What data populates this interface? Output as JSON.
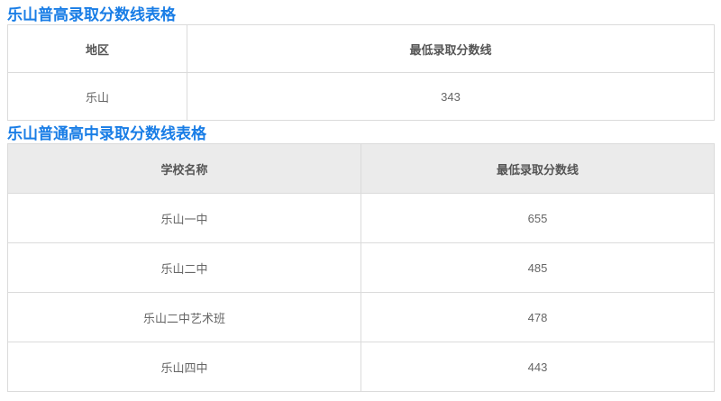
{
  "page": {
    "background_color": "#FFFFFF",
    "accent_color": "#197DE6",
    "border_color": "#DBDBDB",
    "table2_header_bg": "#EBEBEB",
    "header_text_color": "#555555",
    "cell_text_color": "#666666"
  },
  "tables": [
    {
      "title": "乐山普高录取分数线表格",
      "columns": [
        "地区",
        "最低录取分数线"
      ],
      "rows": [
        [
          "乐山",
          "343"
        ]
      ]
    },
    {
      "title": "乐山普通高中录取分数线表格",
      "columns": [
        "学校名称",
        "最低录取分数线"
      ],
      "rows": [
        [
          "乐山一中",
          "655"
        ],
        [
          "乐山二中",
          "485"
        ],
        [
          "乐山二中艺术班",
          "478"
        ],
        [
          "乐山四中",
          "443"
        ]
      ]
    }
  ]
}
